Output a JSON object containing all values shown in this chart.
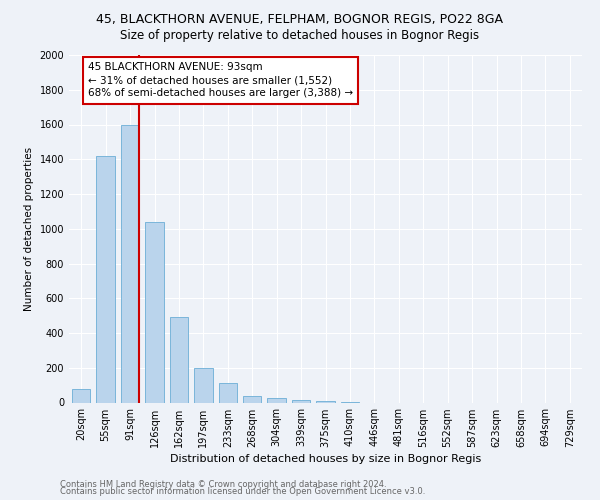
{
  "title1": "45, BLACKTHORN AVENUE, FELPHAM, BOGNOR REGIS, PO22 8GA",
  "title2": "Size of property relative to detached houses in Bognor Regis",
  "xlabel": "Distribution of detached houses by size in Bognor Regis",
  "ylabel": "Number of detached properties",
  "categories": [
    "20sqm",
    "55sqm",
    "91sqm",
    "126sqm",
    "162sqm",
    "197sqm",
    "233sqm",
    "268sqm",
    "304sqm",
    "339sqm",
    "375sqm",
    "410sqm",
    "446sqm",
    "481sqm",
    "516sqm",
    "552sqm",
    "587sqm",
    "623sqm",
    "658sqm",
    "694sqm",
    "729sqm"
  ],
  "values": [
    80,
    1420,
    1600,
    1040,
    490,
    200,
    110,
    40,
    25,
    15,
    10,
    5,
    0,
    0,
    0,
    0,
    0,
    0,
    0,
    0,
    0
  ],
  "bar_color": "#bad4ec",
  "bar_edgecolor": "#6baed6",
  "vline_color": "#cc0000",
  "annotation_line1": "45 BLACKTHORN AVENUE: 93sqm",
  "annotation_line2": "← 31% of detached houses are smaller (1,552)",
  "annotation_line3": "68% of semi-detached houses are larger (3,388) →",
  "annotation_box_edgecolor": "#cc0000",
  "ylim": [
    0,
    2000
  ],
  "yticks": [
    0,
    200,
    400,
    600,
    800,
    1000,
    1200,
    1400,
    1600,
    1800,
    2000
  ],
  "footer1": "Contains HM Land Registry data © Crown copyright and database right 2024.",
  "footer2": "Contains public sector information licensed under the Open Government Licence v3.0.",
  "bg_color": "#eef2f8",
  "plot_bg_color": "#eef2f8",
  "grid_color": "#ffffff",
  "title1_fontsize": 9,
  "title2_fontsize": 8.5,
  "xlabel_fontsize": 8,
  "ylabel_fontsize": 7.5,
  "tick_fontsize": 7,
  "footer_fontsize": 6,
  "annotation_fontsize": 7.5
}
